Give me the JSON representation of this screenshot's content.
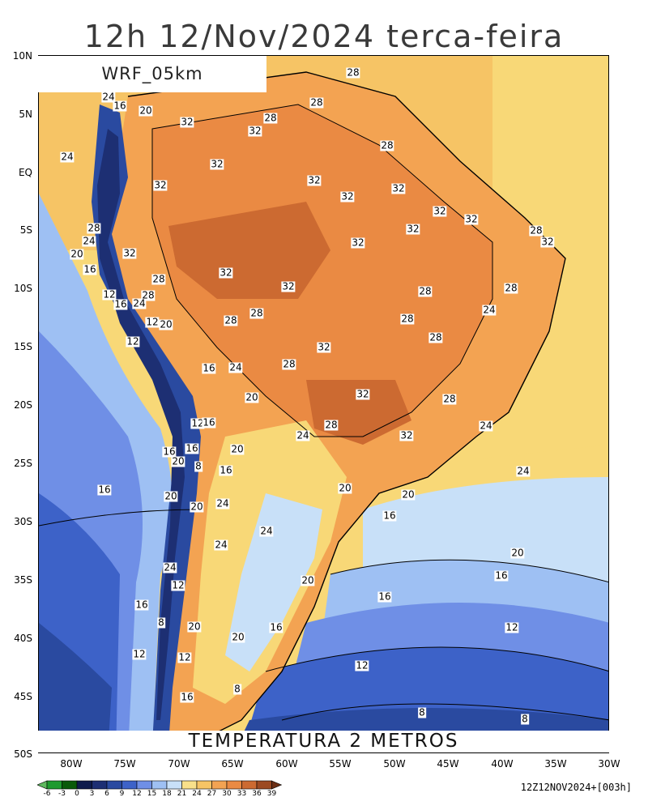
{
  "title": "12h 12/Nov/2024 terca-feira",
  "model_label": "WRF_05km",
  "variable_label": "TEMPERATURA 2 METROS",
  "run_label": "12Z12NOV2024+[003h]",
  "lat_labels": [
    "10N",
    "5N",
    "EQ",
    "5S",
    "10S",
    "15S",
    "20S",
    "25S",
    "30S",
    "35S",
    "40S",
    "45S",
    "50S"
  ],
  "lon_labels": [
    "80W",
    "75W",
    "70W",
    "65W",
    "60W",
    "55W",
    "50W",
    "45W",
    "40W",
    "35W",
    "30W"
  ],
  "colorbar": {
    "labels": [
      "-6",
      "-3",
      "0",
      "3",
      "6",
      "9",
      "12",
      "15",
      "18",
      "21",
      "24",
      "27",
      "30",
      "33",
      "36",
      "39"
    ],
    "colors": [
      "#5fb95f",
      "#1f9a2f",
      "#0a5a0a",
      "#0e1b4c",
      "#1d2f73",
      "#2a4aa0",
      "#3d62c8",
      "#6f8fe6",
      "#9ec0f3",
      "#c8e0f8",
      "#f8e08a",
      "#f6c465",
      "#f3a352",
      "#ea8a43",
      "#cc6a31",
      "#9c4a22",
      "#6b2f15"
    ]
  },
  "isotherm_labels": [
    {
      "text": "28"
    },
    {
      "text": "24"
    },
    {
      "text": "16"
    },
    {
      "text": "20"
    },
    {
      "text": "32"
    },
    {
      "text": "28"
    },
    {
      "text": "28"
    },
    {
      "text": "32"
    },
    {
      "text": "28"
    },
    {
      "text": "24"
    },
    {
      "text": "32"
    },
    {
      "text": "32"
    },
    {
      "text": "32"
    },
    {
      "text": "32"
    },
    {
      "text": "32"
    },
    {
      "text": "32"
    },
    {
      "text": "32"
    },
    {
      "text": "28"
    },
    {
      "text": "32"
    },
    {
      "text": "32"
    },
    {
      "text": "28"
    },
    {
      "text": "24"
    },
    {
      "text": "32"
    },
    {
      "text": "20"
    },
    {
      "text": "16"
    },
    {
      "text": "32"
    },
    {
      "text": "28"
    },
    {
      "text": "32"
    },
    {
      "text": "28"
    },
    {
      "text": "12"
    },
    {
      "text": "16"
    },
    {
      "text": "28"
    },
    {
      "text": "24"
    },
    {
      "text": "28"
    },
    {
      "text": "24"
    },
    {
      "text": "28"
    },
    {
      "text": "28"
    },
    {
      "text": "12"
    },
    {
      "text": "20"
    },
    {
      "text": "28"
    },
    {
      "text": "32"
    },
    {
      "text": "12"
    },
    {
      "text": "16"
    },
    {
      "text": "24"
    },
    {
      "text": "28"
    },
    {
      "text": "32"
    },
    {
      "text": "28"
    },
    {
      "text": "20"
    },
    {
      "text": "12"
    },
    {
      "text": "16"
    },
    {
      "text": "28"
    },
    {
      "text": "24"
    },
    {
      "text": "32"
    },
    {
      "text": "32"
    },
    {
      "text": "28"
    },
    {
      "text": "16"
    },
    {
      "text": "16"
    },
    {
      "text": "20"
    },
    {
      "text": "20"
    },
    {
      "text": "8"
    },
    {
      "text": "24"
    },
    {
      "text": "16"
    },
    {
      "text": "16"
    },
    {
      "text": "20"
    },
    {
      "text": "20"
    },
    {
      "text": "20"
    },
    {
      "text": "16"
    },
    {
      "text": "20"
    },
    {
      "text": "24"
    },
    {
      "text": "24"
    },
    {
      "text": "24"
    },
    {
      "text": "24"
    },
    {
      "text": "20"
    },
    {
      "text": "24"
    },
    {
      "text": "12"
    },
    {
      "text": "16"
    },
    {
      "text": "20"
    },
    {
      "text": "16"
    },
    {
      "text": "16"
    },
    {
      "text": "8"
    },
    {
      "text": "20"
    },
    {
      "text": "20"
    },
    {
      "text": "16"
    },
    {
      "text": "12"
    },
    {
      "text": "12"
    },
    {
      "text": "12"
    },
    {
      "text": "12"
    },
    {
      "text": "16"
    },
    {
      "text": "8"
    },
    {
      "text": "8"
    },
    {
      "text": "8"
    }
  ]
}
